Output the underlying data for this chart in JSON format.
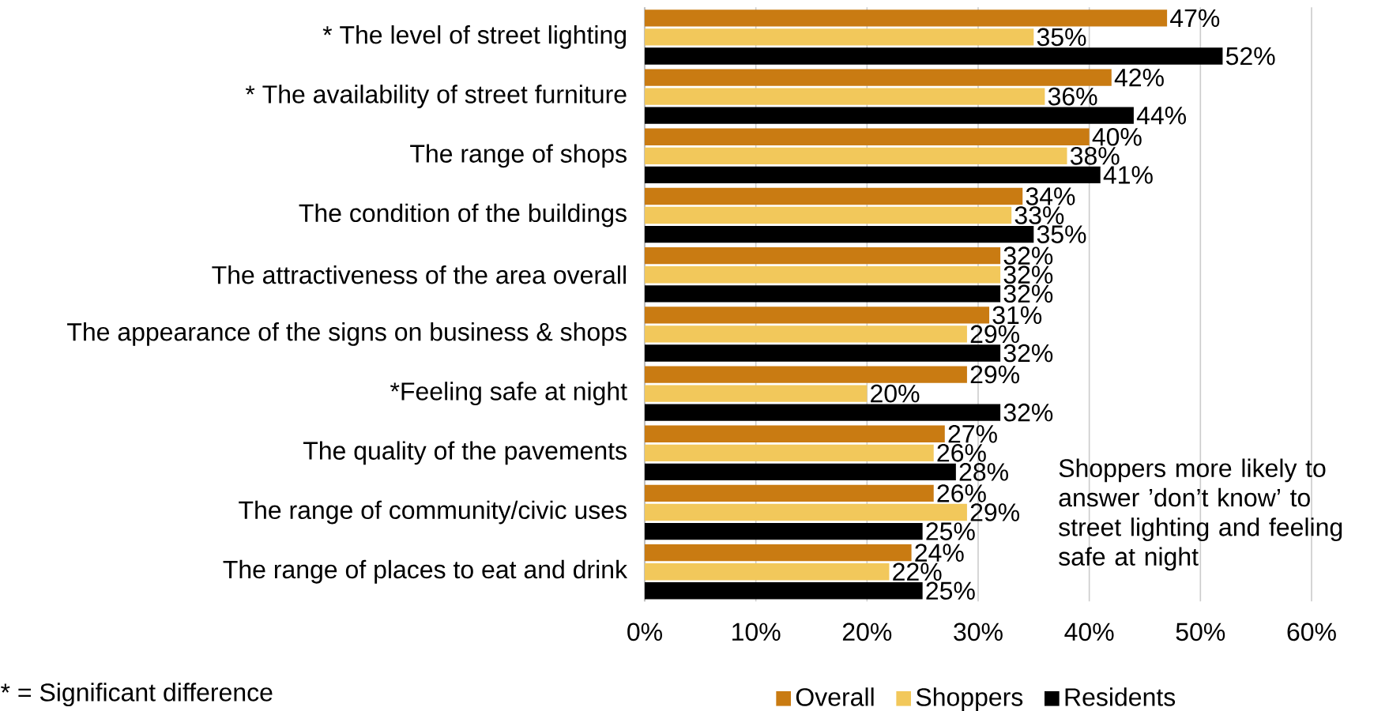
{
  "chart_data": {
    "type": "bar",
    "orientation": "horizontal",
    "categories": [
      "* The level of street lighting",
      "* The availability of street furniture",
      "The range of shops",
      "The condition of the buildings",
      "The attractiveness of the area overall",
      "The appearance of the signs on business & shops",
      "*Feeling safe at night",
      "The quality of the pavements",
      "The range of community/civic uses",
      "The range of places to eat and drink"
    ],
    "series": [
      {
        "name": "Overall",
        "color": "#c97b12",
        "values": [
          47,
          42,
          40,
          34,
          32,
          31,
          29,
          27,
          26,
          24
        ],
        "value_labels": [
          "47%",
          "42%",
          "40%",
          "34%",
          "32%",
          "31%",
          "29%",
          "27%",
          "26%",
          "24%"
        ]
      },
      {
        "name": "Shoppers",
        "color": "#f2c85b",
        "values": [
          35,
          36,
          38,
          33,
          32,
          29,
          20,
          26,
          29,
          22
        ],
        "value_labels": [
          "35%",
          "36%",
          "38%",
          "33%",
          "32%",
          "29%",
          "20%",
          "26%",
          "29%",
          "22%"
        ]
      },
      {
        "name": "Residents",
        "color": "#000000",
        "values": [
          52,
          44,
          41,
          35,
          32,
          32,
          32,
          28,
          25,
          25
        ],
        "value_labels": [
          "52%",
          "44%",
          "41%",
          "35%",
          "32%",
          "32%",
          "32%",
          "28%",
          "25%",
          "25%"
        ]
      }
    ],
    "xlim": [
      0,
      60
    ],
    "xticks": [
      {
        "value": 0,
        "label": "0%"
      },
      {
        "value": 10,
        "label": "10%"
      },
      {
        "value": 20,
        "label": "20%"
      },
      {
        "value": 30,
        "label": "30%"
      },
      {
        "value": 40,
        "label": "40%"
      },
      {
        "value": 50,
        "label": "50%"
      },
      {
        "value": 60,
        "label": "60%"
      }
    ],
    "grid": "x",
    "legend": "bottom",
    "annotations": [
      "Shoppers more likely to answer ’don’t know’ to street lighting and feeling safe at night",
      "* = Significant difference"
    ]
  }
}
